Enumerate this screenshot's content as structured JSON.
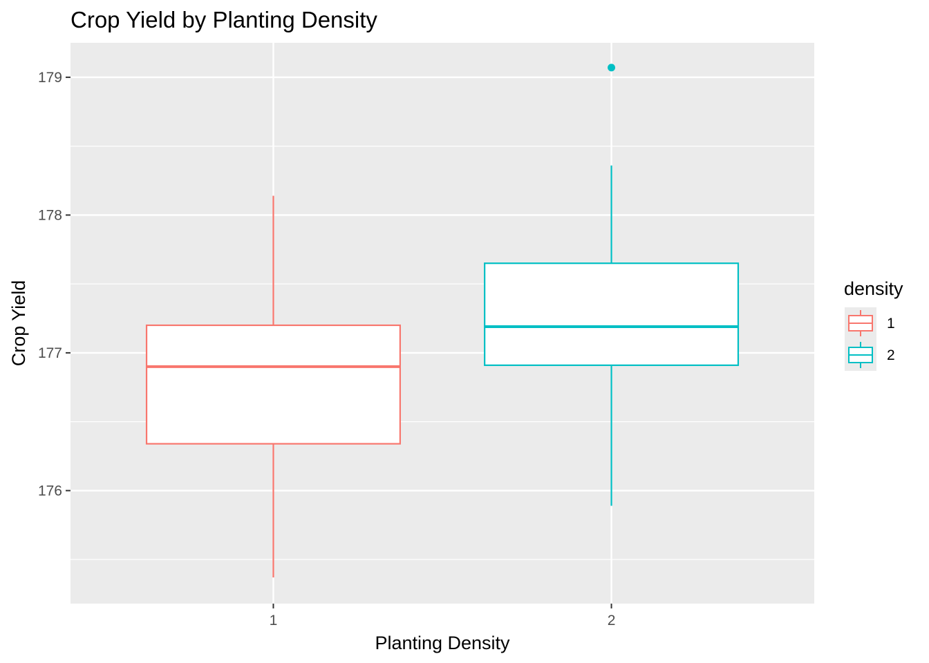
{
  "chart_data": {
    "type": "box",
    "title": "Crop Yield by Planting Density",
    "xlabel": "Planting Density",
    "ylabel": "Crop Yield",
    "categories": [
      "1",
      "2"
    ],
    "ylim": [
      175.18,
      179.25
    ],
    "y_ticks": [
      176,
      177,
      178,
      179
    ],
    "grid": true,
    "legend": {
      "title": "density",
      "position": "right",
      "entries": [
        "1",
        "2"
      ]
    },
    "series": [
      {
        "name": "1",
        "color": "#F8766D",
        "whisker_low": 175.37,
        "q1": 176.34,
        "median": 176.9,
        "q3": 177.2,
        "whisker_high": 178.14,
        "outliers": []
      },
      {
        "name": "2",
        "color": "#00BFC4",
        "whisker_low": 175.89,
        "q1": 176.91,
        "median": 177.19,
        "q3": 177.65,
        "whisker_high": 178.36,
        "outliers": [
          179.07
        ]
      }
    ]
  }
}
